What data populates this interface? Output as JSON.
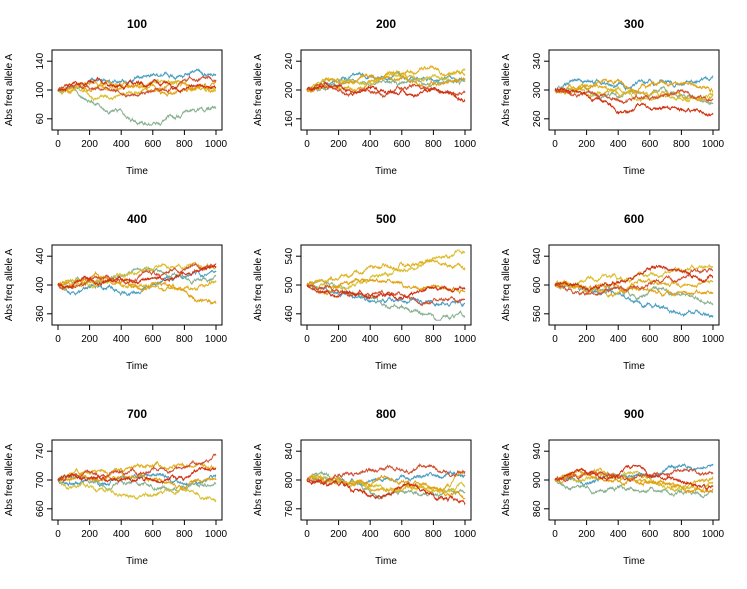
{
  "figure": {
    "colors": [
      "#4a9ec0",
      "#88b090",
      "#d9c030",
      "#e0b020",
      "#e2a010",
      "#d05030",
      "#d03010"
    ],
    "line_count_per_panel": 7,
    "steps": 1000
  },
  "chart_data": [
    {
      "type": "line",
      "title": "100",
      "xlabel": "Time",
      "ylabel": "Abs freq allele A",
      "xlim": [
        0,
        1000
      ],
      "ylim": [
        50,
        150
      ],
      "xticks": [
        0,
        200,
        400,
        600,
        800,
        1000
      ],
      "yticks": [
        60,
        100,
        140
      ],
      "series_end_values": [
        122,
        74,
        98,
        103,
        110,
        114,
        104
      ]
    },
    {
      "type": "line",
      "title": "200",
      "xlabel": "Time",
      "ylabel": "Abs freq allele A",
      "xlim": [
        0,
        1000
      ],
      "ylim": [
        150,
        250
      ],
      "xticks": [
        0,
        200,
        400,
        600,
        800,
        1000
      ],
      "yticks": [
        160,
        200,
        240
      ],
      "series_end_values": [
        216,
        212,
        230,
        222,
        212,
        196,
        184
      ]
    },
    {
      "type": "line",
      "title": "300",
      "xlabel": "Time",
      "ylabel": "Abs freq allele A",
      "xlim": [
        0,
        1000
      ],
      "ylim": [
        250,
        350
      ],
      "xticks": [
        0,
        200,
        400,
        600,
        800,
        1000
      ],
      "yticks": [
        260,
        300,
        340
      ],
      "series_end_values": [
        320,
        282,
        296,
        292,
        298,
        288,
        266
      ]
    },
    {
      "type": "line",
      "title": "400",
      "xlabel": "Time",
      "ylabel": "Abs freq allele A",
      "xlim": [
        0,
        1000
      ],
      "ylim": [
        350,
        450
      ],
      "xticks": [
        0,
        200,
        400,
        600,
        800,
        1000
      ],
      "yticks": [
        360,
        400,
        440
      ],
      "series_end_values": [
        418,
        412,
        424,
        404,
        374,
        430,
        426
      ]
    },
    {
      "type": "line",
      "title": "500",
      "xlabel": "Time",
      "ylabel": "Abs freq allele A",
      "xlim": [
        0,
        1000
      ],
      "ylim": [
        450,
        550
      ],
      "xticks": [
        0,
        200,
        400,
        600,
        800,
        1000
      ],
      "yticks": [
        460,
        500,
        540
      ],
      "series_end_values": [
        474,
        456,
        546,
        522,
        490,
        480,
        494
      ]
    },
    {
      "type": "line",
      "title": "600",
      "xlabel": "Time",
      "ylabel": "Abs freq allele A",
      "xlim": [
        0,
        1000
      ],
      "ylim": [
        550,
        650
      ],
      "xticks": [
        0,
        200,
        400,
        600,
        800,
        1000
      ],
      "yticks": [
        560,
        600,
        640
      ],
      "series_end_values": [
        558,
        572,
        626,
        604,
        590,
        620,
        612
      ]
    },
    {
      "type": "line",
      "title": "700",
      "xlabel": "Time",
      "ylabel": "Abs freq allele A",
      "xlim": [
        0,
        1000
      ],
      "ylim": [
        650,
        750
      ],
      "xticks": [
        0,
        200,
        400,
        600,
        800,
        1000
      ],
      "yticks": [
        660,
        700,
        740
      ],
      "series_end_values": [
        706,
        694,
        672,
        718,
        700,
        734,
        716
      ]
    },
    {
      "type": "line",
      "title": "800",
      "xlabel": "Time",
      "ylabel": "Abs freq allele A",
      "xlim": [
        0,
        1000
      ],
      "ylim": [
        750,
        850
      ],
      "xticks": [
        0,
        200,
        400,
        600,
        800,
        1000
      ],
      "yticks": [
        760,
        800,
        840
      ],
      "series_end_values": [
        806,
        782,
        790,
        812,
        774,
        812,
        768
      ]
    },
    {
      "type": "line",
      "title": "900",
      "xlabel": "Time",
      "ylabel": "Abs freq allele A",
      "xlim": [
        0,
        1000
      ],
      "ylim": [
        850,
        950
      ],
      "xticks": [
        0,
        200,
        400,
        600,
        800,
        1000
      ],
      "yticks": [
        860,
        900,
        940
      ],
      "series_end_values": [
        922,
        884,
        896,
        902,
        888,
        908,
        892
      ]
    }
  ]
}
